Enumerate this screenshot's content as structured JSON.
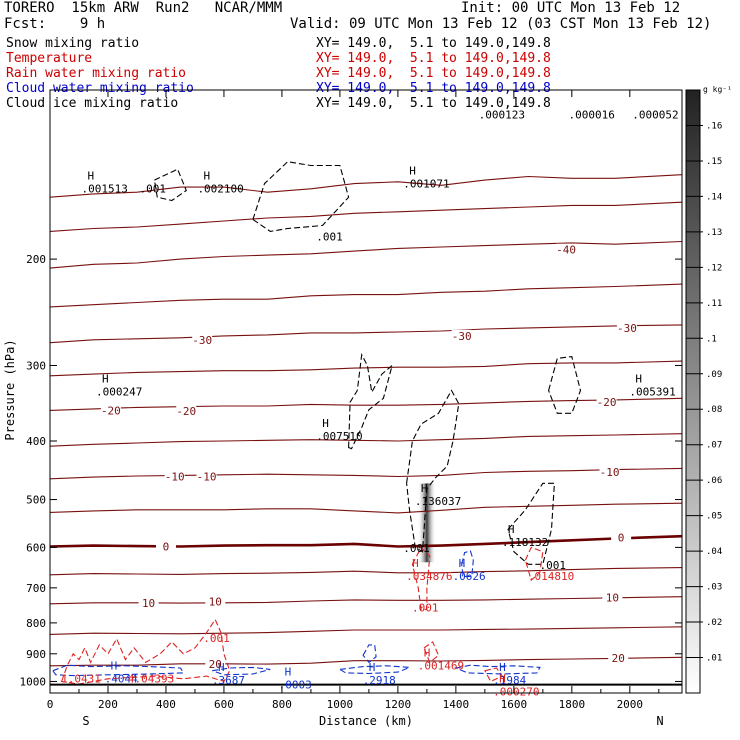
{
  "header": {
    "model": "TORERO  15km ARW  Run2   NCAR/MMM",
    "forecast": "Fcst:    9 h",
    "init": "Init: 00 UTC Mon 13 Feb 12",
    "valid": "Valid: 09 UTC Mon 13 Feb 12 (03 CST Mon 13 Feb 12)"
  },
  "fields": [
    {
      "name": "Snow mixing ratio",
      "xy": "XY= 149.0,  5.1 to 149.0,149.8",
      "color": "#000000"
    },
    {
      "name": "Temperature",
      "xy": "XY= 149.0,  5.1 to 149.0,149.8",
      "color": "#cc0000"
    },
    {
      "name": "Rain water mixing ratio",
      "xy": "XY= 149.0,  5.1 to 149.0,149.8",
      "color": "#cc0000"
    },
    {
      "name": "Cloud water mixing ratio",
      "xy": "XY= 149.0,  5.1 to 149.0,149.8",
      "color": "#0000cc"
    },
    {
      "name": "Cloud ice mixing ratio",
      "xy": "XY= 149.0,  5.1 to 149.0,149.8",
      "color": "#000000"
    }
  ],
  "colors": {
    "temperature": "#7a1010",
    "freezing": "#6a0000",
    "rain": "#dd2222",
    "cloud_water": "#1133cc",
    "cloud_ice": "#000000"
  },
  "chart_data": {
    "type": "contour-cross-section",
    "xlabel": "Distance (km)",
    "ylabel": "Pressure (hPa)",
    "x_ticks": [
      0,
      200,
      400,
      600,
      800,
      1000,
      1200,
      1400,
      1600,
      1800,
      2000
    ],
    "y_ticks": [
      200,
      300,
      400,
      500,
      600,
      700,
      800,
      900,
      1000
    ],
    "xlim": [
      0,
      2180
    ],
    "ylim": [
      105,
      1045
    ],
    "y_scale": "log",
    "endpoints": {
      "left": "S",
      "right": "N"
    },
    "colorbar": {
      "units": "g kg⁻¹",
      "ticks": [
        ".01",
        ".02",
        ".03",
        ".04",
        ".05",
        ".06",
        ".07",
        ".08",
        ".09",
        ".1",
        ".11",
        ".12",
        ".13",
        ".14",
        ".15",
        ".16"
      ]
    },
    "temperature_contours": [
      {
        "value": -50,
        "label": "",
        "p": [
          158,
          156,
          155,
          152,
          152,
          155,
          153,
          150,
          149,
          151,
          148,
          146,
          147,
          147,
          145
        ]
      },
      {
        "value": -45,
        "label": "",
        "p": [
          180,
          178,
          177,
          175,
          173,
          171,
          170,
          168,
          167,
          166,
          165,
          164,
          163,
          163,
          161
        ]
      },
      {
        "value": -40,
        "label": "-40",
        "p": [
          207,
          204,
          203,
          200,
          198,
          197,
          196,
          194,
          192,
          191,
          190,
          189,
          188,
          189,
          187
        ]
      },
      {
        "value": -35,
        "label": "",
        "p": [
          240,
          238,
          236,
          234,
          233,
          233,
          230,
          229,
          229,
          227,
          226,
          224,
          223,
          222,
          220
        ]
      },
      {
        "value": -30,
        "label": "-30",
        "p": [
          275,
          272,
          271,
          270,
          268,
          267,
          265,
          265,
          264,
          263,
          261,
          260,
          259,
          258,
          257
        ]
      },
      {
        "value": -25,
        "label": "",
        "p": [
          312,
          310,
          308,
          307,
          306,
          306,
          305,
          303,
          302,
          302,
          301,
          298,
          297,
          297,
          295
        ]
      },
      {
        "value": -20,
        "label": "-20",
        "p": [
          356,
          354,
          352,
          351,
          350,
          350,
          348,
          349,
          349,
          348,
          346,
          344,
          343,
          342,
          340
        ]
      },
      {
        "value": -15,
        "label": "",
        "p": [
          408,
          405,
          403,
          401,
          400,
          399,
          398,
          399,
          400,
          398,
          396,
          393,
          392,
          391,
          389
        ]
      },
      {
        "value": -10,
        "label": "-10",
        "p": [
          462,
          459,
          457,
          456,
          455,
          454,
          455,
          456,
          458,
          456,
          451,
          449,
          448,
          446,
          444
        ]
      },
      {
        "value": -5,
        "label": "",
        "p": [
          525,
          522,
          520,
          520,
          520,
          518,
          518,
          522,
          526,
          521,
          515,
          513,
          511,
          509,
          507
        ]
      },
      {
        "value": 0,
        "label": "0",
        "p": [
          598,
          596,
          597,
          598,
          596,
          595,
          595,
          592,
          598,
          596,
          592,
          588,
          584,
          580,
          575
        ]
      },
      {
        "value": 5,
        "label": "",
        "p": [
          666,
          663,
          664,
          665,
          663,
          662,
          660,
          657,
          661,
          661,
          658,
          656,
          653,
          650,
          648
        ]
      },
      {
        "value": 10,
        "label": "10",
        "p": [
          744,
          741,
          741,
          742,
          741,
          740,
          736,
          733,
          734,
          734,
          733,
          731,
          729,
          727,
          724
        ]
      },
      {
        "value": 15,
        "label": "",
        "p": [
          836,
          832,
          833,
          834,
          832,
          830,
          826,
          822,
          822,
          822,
          820,
          819,
          817,
          815,
          812
        ]
      },
      {
        "value": 20,
        "label": "20",
        "p": [
          942,
          940,
          940,
          935,
          935,
          936,
          933,
          924,
          924,
          925,
          923,
          920,
          918,
          916,
          912
        ]
      }
    ],
    "temperature_x": [
      0,
      150,
      300,
      450,
      600,
      750,
      900,
      1050,
      1200,
      1350,
      1500,
      1650,
      1800,
      1950,
      2180
    ],
    "temperature_labels": [
      {
        "text": "-40",
        "x": 1780,
        "p": 193
      },
      {
        "text": "-30",
        "x": 525,
        "p": 272
      },
      {
        "text": "-30",
        "x": 1420,
        "p": 268
      },
      {
        "text": "-30",
        "x": 1990,
        "p": 260
      },
      {
        "text": "-20",
        "x": 210,
        "p": 356
      },
      {
        "text": "-20",
        "x": 470,
        "p": 357
      },
      {
        "text": "-20",
        "x": 1920,
        "p": 345
      },
      {
        "text": "-10",
        "x": 430,
        "p": 458
      },
      {
        "text": "-10",
        "x": 540,
        "p": 458
      },
      {
        "text": "-10",
        "x": 1930,
        "p": 450
      },
      {
        "text": "0",
        "x": 400,
        "p": 598
      },
      {
        "text": "0",
        "x": 1970,
        "p": 578
      },
      {
        "text": "10",
        "x": 340,
        "p": 742
      },
      {
        "text": "10",
        "x": 570,
        "p": 737
      },
      {
        "text": "10",
        "x": 1940,
        "p": 726
      },
      {
        "text": "20",
        "x": 570,
        "p": 935
      },
      {
        "text": "20",
        "x": 1960,
        "p": 915
      }
    ],
    "extrema": [
      {
        "field": "snow",
        "label": "H",
        "value": ".001513",
        "x": 150,
        "p": 150
      },
      {
        "field": "snow",
        "label": "",
        "value": ".001",
        "x": 350,
        "p": 150
      },
      {
        "field": "snow",
        "label": "H",
        "value": ".002100",
        "x": 550,
        "p": 150
      },
      {
        "field": "snow",
        "label": "",
        "value": ".001",
        "x": 960,
        "p": 180
      },
      {
        "field": "snow",
        "label": "H",
        "value": ".001071",
        "x": 1260,
        "p": 147
      },
      {
        "field": "snow",
        "label": "",
        "value": ".000123",
        "x": 1520,
        "p": 113
      },
      {
        "field": "snow",
        "label": "",
        "value": ".000016",
        "x": 1830,
        "p": 113
      },
      {
        "field": "snow",
        "label": "",
        "value": ".000052",
        "x": 2050,
        "p": 113
      },
      {
        "field": "ice",
        "label": "H",
        "value": ".000247",
        "x": 200,
        "p": 325
      },
      {
        "field": "ice",
        "label": "H",
        "value": ".005391",
        "x": 2040,
        "p": 325
      },
      {
        "field": "snow",
        "label": "H",
        "value": ".007510",
        "x": 960,
        "p": 385
      },
      {
        "field": "snow",
        "label": "H",
        "value": ".136037",
        "x": 1300,
        "p": 493
      },
      {
        "field": "snow",
        "label": "H",
        "value": ".118132",
        "x": 1600,
        "p": 577
      },
      {
        "field": "snow",
        "label": "",
        "value": ".001",
        "x": 1260,
        "p": 590
      },
      {
        "field": "snow",
        "label": "",
        "value": ".001",
        "x": 1730,
        "p": 629
      },
      {
        "field": "rain",
        "label": "H",
        "value": ".034876",
        "x": 1270,
        "p": 657
      },
      {
        "field": "rain",
        "label": "",
        "value": ".014810",
        "x": 1690,
        "p": 657
      },
      {
        "field": "cloud_water",
        "label": "H",
        "value": ".0626",
        "x": 1430,
        "p": 657
      },
      {
        "field": "rain",
        "label": "",
        "value": ".001",
        "x": 1290,
        "p": 740
      },
      {
        "field": "rain",
        "label": "",
        "value": ".001",
        "x": 570,
        "p": 832
      },
      {
        "field": "rain",
        "label": "H",
        "value": ".001469",
        "x": 1310,
        "p": 923
      },
      {
        "field": "cloud_water",
        "label": "H",
        "value": ".4044",
        "x": 230,
        "p": 970
      },
      {
        "field": "rain",
        "label": "",
        "value": "1.0431",
        "x": 80,
        "p": 970
      },
      {
        "field": "rain",
        "label": "",
        "value": "4.04393",
        "x": 310,
        "p": 970
      },
      {
        "field": "cloud_water",
        "label": "H",
        "value": ".3687",
        "x": 600,
        "p": 975
      },
      {
        "field": "cloud_water",
        "label": "H",
        "value": ".0003",
        "x": 830,
        "p": 993
      },
      {
        "field": "cloud_water",
        "label": "H",
        "value": ".2918",
        "x": 1120,
        "p": 975
      },
      {
        "field": "cloud_water",
        "label": "H",
        "value": ".1984",
        "x": 1570,
        "p": 975
      },
      {
        "field": "rain",
        "label": "H",
        "value": ".000270",
        "x": 1570,
        "p": 1020
      }
    ],
    "snow_shading": {
      "x": 1300,
      "p_top": 470,
      "p_bottom": 635,
      "peak": 0.136
    }
  }
}
